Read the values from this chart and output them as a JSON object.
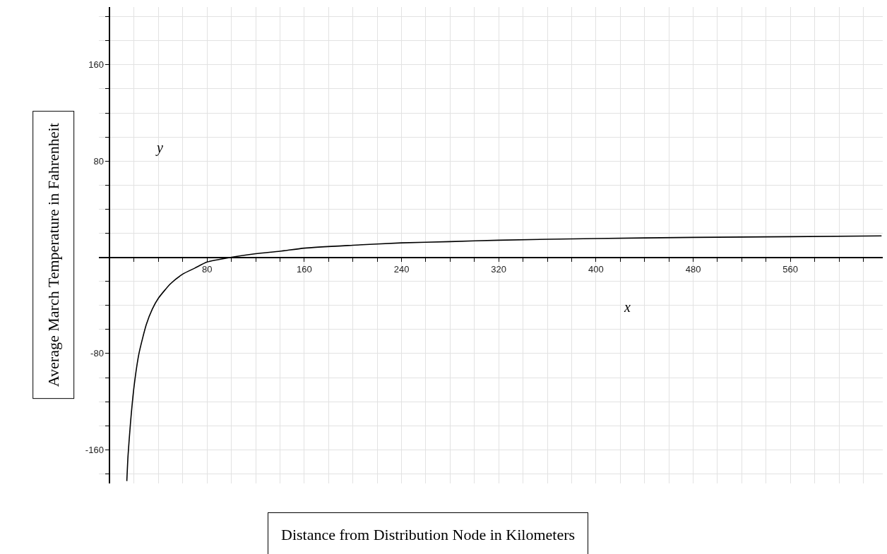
{
  "chart_data": {
    "type": "line",
    "xlabel": "Distance from Distribution Node in Kilometers",
    "ylabel": "Average March Temperature in Fahrenheit",
    "annotations": [
      "y",
      "x"
    ],
    "x": [
      14,
      15,
      17,
      20,
      24,
      30,
      35,
      40,
      50,
      60,
      70,
      80,
      100,
      120,
      140,
      160,
      200,
      240,
      280,
      320,
      400,
      480,
      560,
      635
    ],
    "series": [
      {
        "color": "#000000",
        "values": [
          -186,
          -165,
          -138,
          -107,
          -80,
          -56,
          -43,
          -34,
          -22,
          -14,
          -9,
          -4,
          0,
          3,
          5,
          7.6,
          10,
          12,
          13,
          14.2,
          15.6,
          16.5,
          17.1,
          17.8
        ]
      }
    ],
    "xlim": [
      -9,
      636
    ],
    "ylim": [
      -188,
      208
    ],
    "xticks": [
      {
        "value": 20,
        "label": null
      },
      {
        "value": 40,
        "label": null
      },
      {
        "value": 60,
        "label": null
      },
      80,
      {
        "value": 100,
        "label": null
      },
      {
        "value": 120,
        "label": null
      },
      {
        "value": 140,
        "label": null
      },
      160,
      {
        "value": 180,
        "label": null
      },
      {
        "value": 200,
        "label": null
      },
      {
        "value": 220,
        "label": null
      },
      240,
      {
        "value": 260,
        "label": null
      },
      {
        "value": 280,
        "label": null
      },
      {
        "value": 300,
        "label": null
      },
      320,
      {
        "value": 340,
        "label": null
      },
      {
        "value": 360,
        "label": null
      },
      {
        "value": 380,
        "label": null
      },
      400,
      {
        "value": 420,
        "label": null
      },
      {
        "value": 440,
        "label": null
      },
      {
        "value": 460,
        "label": null
      },
      480,
      {
        "value": 500,
        "label": null
      },
      {
        "value": 520,
        "label": null
      },
      {
        "value": 540,
        "label": null
      },
      560,
      {
        "value": 580,
        "label": null
      },
      {
        "value": 600,
        "label": null
      },
      {
        "value": 620,
        "label": null
      }
    ],
    "yticks": [
      {
        "value": -180,
        "label": null
      },
      -160,
      {
        "value": -140,
        "label": null
      },
      {
        "value": -120,
        "label": null
      },
      {
        "value": -100,
        "label": null
      },
      -80,
      {
        "value": -60,
        "label": null
      },
      {
        "value": -40,
        "label": null
      },
      {
        "value": -20,
        "label": null
      },
      {
        "value": 20,
        "label": null
      },
      {
        "value": 40,
        "label": null
      },
      {
        "value": 60,
        "label": null
      },
      80,
      {
        "value": 100,
        "label": null
      },
      {
        "value": 120,
        "label": null
      },
      {
        "value": 140,
        "label": null
      },
      160,
      {
        "value": 180,
        "label": null
      },
      {
        "value": 200,
        "label": null
      }
    ],
    "grid": true,
    "marker": "none",
    "line_style": "solid"
  }
}
